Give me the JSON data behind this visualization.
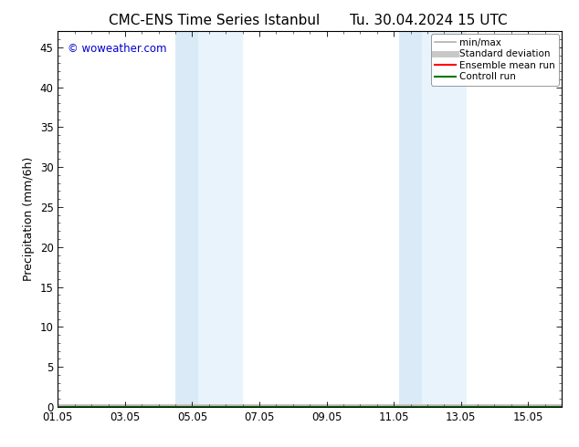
{
  "title_left": "CMC-ENS Time Series Istanbul",
  "title_right": "Tu. 30.04.2024 15 UTC",
  "ylabel": "Precipitation (mm/6h)",
  "watermark": "© woweather.com",
  "watermark_color": "#0000cc",
  "ylim": [
    0,
    47
  ],
  "yticks": [
    0,
    5,
    10,
    15,
    20,
    25,
    30,
    35,
    40,
    45
  ],
  "xtick_labels": [
    "01.05",
    "03.05",
    "05.05",
    "07.05",
    "09.05",
    "11.05",
    "13.05",
    "15.05"
  ],
  "xtick_positions": [
    0,
    2,
    4,
    6,
    8,
    10,
    12,
    14
  ],
  "xlim": [
    0,
    15
  ],
  "shaded_bands": [
    {
      "x_start": 3.5,
      "x_end": 4.17,
      "color": "#daeaf7"
    },
    {
      "x_start": 4.17,
      "x_end": 5.5,
      "color": "#e8f3fb"
    },
    {
      "x_start": 10.17,
      "x_end": 10.83,
      "color": "#daeaf7"
    },
    {
      "x_start": 10.83,
      "x_end": 12.17,
      "color": "#e8f3fb"
    }
  ],
  "background_color": "#ffffff",
  "legend_entries": [
    {
      "label": "min/max",
      "color": "#b0b0b0",
      "lw": 1.2
    },
    {
      "label": "Standard deviation",
      "color": "#c8c8c8",
      "lw": 5
    },
    {
      "label": "Ensemble mean run",
      "color": "#ff0000",
      "lw": 1.5
    },
    {
      "label": "Controll run",
      "color": "#007700",
      "lw": 1.5
    }
  ],
  "title_fontsize": 11,
  "ylabel_fontsize": 9,
  "tick_fontsize": 8.5,
  "legend_fontsize": 7.5
}
